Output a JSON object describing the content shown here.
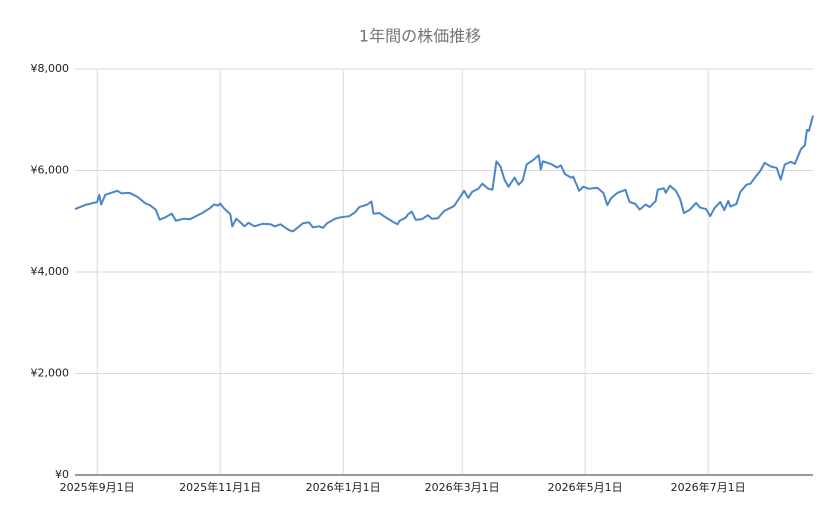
{
  "chart_data": {
    "type": "line",
    "title": "1年間の株価推移",
    "x": [
      "2025-08-21",
      "2025-08-26",
      "2025-08-29",
      "2025-09-01",
      "2025-09-02",
      "2025-09-03",
      "2025-09-05",
      "2025-09-08",
      "2025-09-11",
      "2025-09-13",
      "2025-09-17",
      "2025-09-21",
      "2025-09-25",
      "2025-09-27",
      "2025-09-30",
      "2025-10-02",
      "2025-10-05",
      "2025-10-08",
      "2025-10-10",
      "2025-10-14",
      "2025-10-17",
      "2025-10-21",
      "2025-10-23",
      "2025-10-27",
      "2025-10-29",
      "2025-10-31",
      "2025-11-01",
      "2025-11-03",
      "2025-11-06",
      "2025-11-07",
      "2025-11-09",
      "2025-11-11",
      "2025-11-13",
      "2025-11-15",
      "2025-11-18",
      "2025-11-22",
      "2025-11-26",
      "2025-11-28",
      "2025-12-01",
      "2025-12-03",
      "2025-12-05",
      "2025-12-07",
      "2025-12-09",
      "2025-12-12",
      "2025-12-15",
      "2025-12-17",
      "2025-12-20",
      "2025-12-22",
      "2025-12-24",
      "2025-12-28",
      "2025-12-31",
      "2026-01-04",
      "2026-01-07",
      "2026-01-09",
      "2026-01-13",
      "2026-01-15",
      "2026-01-16",
      "2026-01-19",
      "2026-01-22",
      "2026-01-26",
      "2026-01-28",
      "2026-01-29",
      "2026-02-01",
      "2026-02-02",
      "2026-02-04",
      "2026-02-06",
      "2026-02-09",
      "2026-02-12",
      "2026-02-14",
      "2026-02-17",
      "2026-02-20",
      "2026-02-23",
      "2026-02-25",
      "2026-02-27",
      "2026-03-02",
      "2026-03-04",
      "2026-03-06",
      "2026-03-09",
      "2026-03-11",
      "2026-03-14",
      "2026-03-16",
      "2026-03-18",
      "2026-03-20",
      "2026-03-22",
      "2026-03-24",
      "2026-03-27",
      "2026-03-29",
      "2026-03-31",
      "2026-04-02",
      "2026-04-05",
      "2026-04-08",
      "2026-04-09",
      "2026-04-10",
      "2026-04-14",
      "2026-04-17",
      "2026-04-19",
      "2026-04-21",
      "2026-04-24",
      "2026-04-25",
      "2026-04-27",
      "2026-04-28",
      "2026-04-30",
      "2026-05-03",
      "2026-05-07",
      "2026-05-10",
      "2026-05-12",
      "2026-05-14",
      "2026-05-17",
      "2026-05-21",
      "2026-05-23",
      "2026-05-26",
      "2026-05-28",
      "2026-05-31",
      "2026-06-02",
      "2026-06-05",
      "2026-06-06",
      "2026-06-09",
      "2026-06-10",
      "2026-06-12",
      "2026-06-15",
      "2026-06-17",
      "2026-06-19",
      "2026-06-22",
      "2026-06-25",
      "2026-06-27",
      "2026-06-30",
      "2026-07-02",
      "2026-07-04",
      "2026-07-07",
      "2026-07-09",
      "2026-07-11",
      "2026-07-12",
      "2026-07-15",
      "2026-07-17",
      "2026-07-20",
      "2026-07-22",
      "2026-07-24",
      "2026-07-27",
      "2026-07-29",
      "2026-08-01",
      "2026-08-04",
      "2026-08-06",
      "2026-08-08",
      "2026-08-11",
      "2026-08-13",
      "2026-08-16",
      "2026-08-18",
      "2026-08-19",
      "2026-08-20",
      "2026-08-22"
    ],
    "series": [
      {
        "color": "#4a86c8",
        "values": [
          5240,
          5320,
          5350,
          5380,
          5520,
          5330,
          5520,
          5560,
          5600,
          5550,
          5560,
          5480,
          5350,
          5320,
          5230,
          5030,
          5080,
          5150,
          5010,
          5050,
          5040,
          5120,
          5160,
          5260,
          5330,
          5310,
          5350,
          5250,
          5140,
          4900,
          5050,
          4980,
          4900,
          4970,
          4900,
          4950,
          4940,
          4900,
          4940,
          4880,
          4830,
          4800,
          4860,
          4960,
          4980,
          4880,
          4900,
          4870,
          4960,
          5050,
          5080,
          5100,
          5180,
          5280,
          5330,
          5390,
          5150,
          5160,
          5080,
          4980,
          4940,
          5010,
          5070,
          5130,
          5190,
          5030,
          5040,
          5120,
          5050,
          5060,
          5200,
          5260,
          5300,
          5420,
          5600,
          5460,
          5580,
          5640,
          5740,
          5640,
          5620,
          6180,
          6080,
          5820,
          5680,
          5860,
          5720,
          5800,
          6120,
          6200,
          6300,
          6020,
          6180,
          6130,
          6060,
          6100,
          5930,
          5860,
          5880,
          5700,
          5600,
          5680,
          5640,
          5660,
          5560,
          5320,
          5460,
          5560,
          5620,
          5380,
          5340,
          5230,
          5330,
          5280,
          5400,
          5620,
          5650,
          5560,
          5700,
          5600,
          5450,
          5160,
          5230,
          5360,
          5270,
          5240,
          5100,
          5250,
          5380,
          5220,
          5400,
          5290,
          5340,
          5580,
          5720,
          5740,
          5850,
          6000,
          6150,
          6080,
          6050,
          5820,
          6120,
          6170,
          6130,
          6420,
          6500,
          6800,
          6780,
          7080
        ]
      }
    ],
    "xlim": [
      "2025-08-21",
      "2026-08-22"
    ],
    "xticks": [
      {
        "value": "2025-09-01",
        "label": "2025年9月1日"
      },
      {
        "value": "2025-11-01",
        "label": "2025年11月1日"
      },
      {
        "value": "2026-01-01",
        "label": "2026年1月1日"
      },
      {
        "value": "2026-03-01",
        "label": "2026年3月1日"
      },
      {
        "value": "2026-05-01",
        "label": "2026年5月1日"
      },
      {
        "value": "2026-07-01",
        "label": "2026年7月1日"
      }
    ],
    "ylim": [
      0,
      8000
    ],
    "yticks": [
      {
        "value": 0,
        "label": "¥0"
      },
      {
        "value": 2000,
        "label": "¥2,000"
      },
      {
        "value": 4000,
        "label": "¥4,000"
      },
      {
        "value": 6000,
        "label": "¥6,000"
      },
      {
        "value": 8000,
        "label": "¥8,000"
      }
    ],
    "grid": true
  }
}
